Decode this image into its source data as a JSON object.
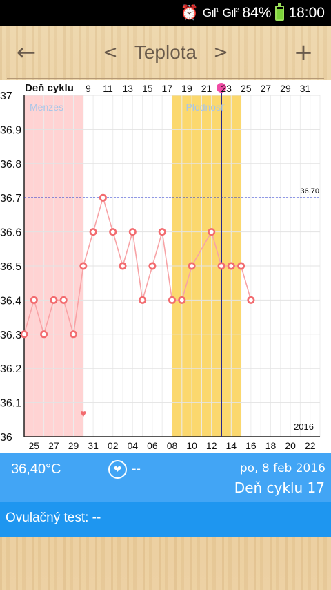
{
  "status_bar": {
    "signal1": "Gıl",
    "signal1_sup": "1",
    "signal2": "Gıl",
    "signal2_sup": "2",
    "battery": "84%",
    "time": "18:00",
    "icons": [
      "alarm-icon",
      "signal-icon",
      "battery-icon"
    ]
  },
  "toolbar": {
    "title": "Teplota",
    "back": "←",
    "prev": "<",
    "next": ">",
    "add": "+"
  },
  "chart_data": {
    "type": "line",
    "header_label": "Deň cyklu",
    "top_ticks": [
      "9",
      "11",
      "13",
      "15",
      "17",
      "19",
      "21",
      "23",
      "25",
      "27",
      "29",
      "31"
    ],
    "bottom_ticks": [
      "25",
      "27",
      "29",
      "31",
      "02",
      "04",
      "06",
      "08",
      "10",
      "12",
      "14",
      "16",
      "18",
      "20",
      "22"
    ],
    "y_ticks": [
      "37",
      "36.9",
      "36.8",
      "36.7",
      "36.6",
      "36.5",
      "36.4",
      "36.3",
      "36.2",
      "36.1",
      "36"
    ],
    "ylim": [
      36.0,
      37.0
    ],
    "threshold": 36.7,
    "threshold_label": "36,70",
    "bands": [
      {
        "label": "Menzes",
        "from": 0,
        "to": 6,
        "color": "#ffd3d3",
        "label_color": "#a8c6e8"
      },
      {
        "label": "Plodnosť",
        "from": 15,
        "to": 22,
        "color": "#fbd86e",
        "label_color": "#a8c6e8"
      }
    ],
    "current_day_index": 20,
    "day_count": 30,
    "year_label": "2016",
    "series": [
      {
        "values": [
          36.3,
          36.4,
          36.3,
          36.4,
          36.4,
          36.3,
          36.5,
          36.6,
          36.7,
          36.6,
          36.5,
          36.6,
          36.4,
          36.5,
          36.6,
          36.4,
          36.4,
          36.5,
          null,
          36.6,
          36.5,
          36.5,
          36.5,
          36.4
        ],
        "color": "#f26b6f"
      }
    ],
    "marker": {
      "index": 6,
      "value": 36.07,
      "label": "♥"
    }
  },
  "info": {
    "temperature": "36,40°C",
    "heart": "❤",
    "dash": "--",
    "date": "po, 8 feb 2016",
    "cycle_day": "Deň cyklu 17"
  },
  "ovulation": {
    "label": "Ovulačný test: --"
  }
}
